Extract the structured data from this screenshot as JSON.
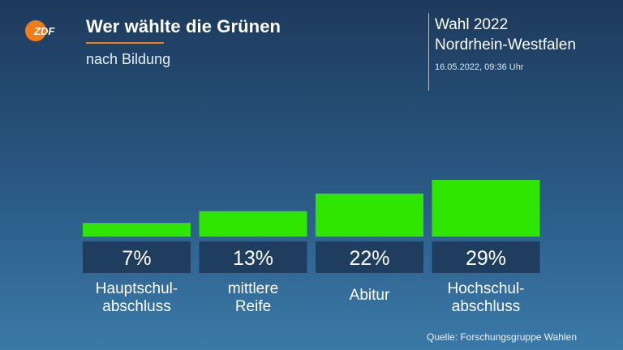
{
  "header": {
    "logo_text": "ZDF",
    "title": "Wer wählte die Grünen",
    "subtitle": "nach Bildung",
    "election": "Wahl 2022",
    "region": "Nordrhein-Westfalen",
    "timestamp": "16.05.2022, 09:36 Uhr"
  },
  "colors": {
    "bar": "#2ee600",
    "label_box": "#1f3d5f",
    "accent": "#f07c1a"
  },
  "chart_data": {
    "type": "bar",
    "title": "Wer wählte die Grünen",
    "subtitle": "nach Bildung",
    "categories": [
      [
        "Hauptschul-",
        "abschluss"
      ],
      [
        "mittlere",
        "Reife"
      ],
      [
        "Abitur"
      ],
      [
        "Hochschul-",
        "abschluss"
      ]
    ],
    "values": [
      7,
      13,
      22,
      29
    ],
    "value_labels": [
      "7%",
      "13%",
      "22%",
      "29%"
    ],
    "unit": "%",
    "ylim": [
      0,
      29
    ],
    "grid": false
  },
  "footer": {
    "source": "Quelle: Forschungsgruppe Wahlen"
  }
}
